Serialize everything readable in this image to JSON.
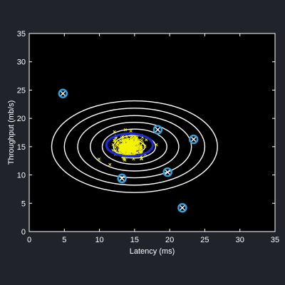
{
  "chart_data": {
    "type": "scatter",
    "xlabel": "Latency (ms)",
    "ylabel": "Throughput (mb/s)",
    "xlim": [
      0,
      35
    ],
    "ylim": [
      0,
      35
    ],
    "x_ticks": [
      "0",
      "5",
      "10",
      "15",
      "20",
      "25",
      "30",
      "35"
    ],
    "y_ticks": [
      "0",
      "5",
      "10",
      "15",
      "20",
      "25",
      "30",
      "35"
    ],
    "grid": false,
    "contour_center": [
      15,
      15
    ],
    "contour_radii": [
      [
        1.5,
        1.0
      ],
      [
        3.0,
        2.0
      ],
      [
        4.6,
        3.1
      ],
      [
        6.3,
        4.3
      ],
      [
        8.1,
        5.5
      ],
      [
        10.0,
        6.8
      ],
      [
        11.8,
        8.1
      ]
    ],
    "anomaly_boundary": {
      "center": [
        14.3,
        15.3
      ],
      "radii": [
        3.3,
        2.0
      ]
    },
    "normal_cluster": {
      "center": [
        14.2,
        15.0
      ],
      "spread": [
        1.0,
        0.9
      ]
    },
    "outliers": [
      {
        "x": 4.8,
        "y": 24.4
      },
      {
        "x": 13.2,
        "y": 9.4
      },
      {
        "x": 18.3,
        "y": 18.0
      },
      {
        "x": 19.7,
        "y": 10.5
      },
      {
        "x": 23.4,
        "y": 16.3
      },
      {
        "x": 21.8,
        "y": 4.2
      }
    ],
    "colors": {
      "background": "#20232a",
      "plot_bg": "#000000",
      "contour": "#ffffff",
      "boundary": "#1f2bd4",
      "normal_points": "#f5f200",
      "outlier_markers": "#ffffff",
      "outlier_circles": "#2fa6e8",
      "axis": "#ffffff"
    }
  }
}
